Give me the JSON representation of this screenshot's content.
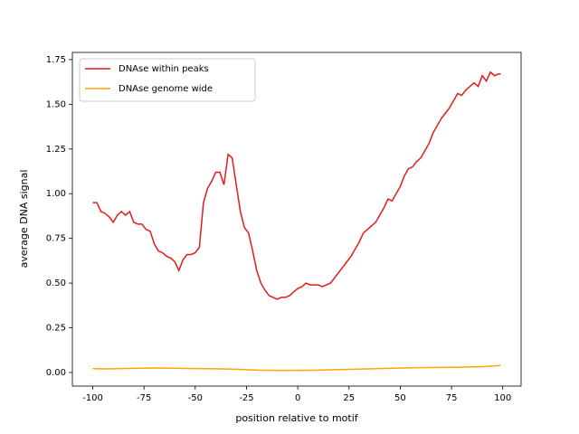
{
  "chart_data": {
    "type": "line",
    "xlabel": "position relative to motif",
    "ylabel": "average DNA signal",
    "xlim": [
      -109.95,
      108.95
    ],
    "ylim": [
      -0.076,
      1.79
    ],
    "xticks": [
      -100,
      -75,
      -50,
      -25,
      0,
      25,
      50,
      75,
      100
    ],
    "yticks": [
      {
        "value": 0,
        "label": "0.00"
      },
      {
        "value": 0.25,
        "label": "0.25"
      },
      {
        "value": 0.5,
        "label": "0.50"
      },
      {
        "value": 0.75,
        "label": "0.75"
      },
      {
        "value": 1,
        "label": "1.00"
      },
      {
        "value": 1.25,
        "label": "1.25"
      },
      {
        "value": 1.5,
        "label": "1.50"
      },
      {
        "value": 1.75,
        "label": "1.75"
      }
    ],
    "legend": "upper left",
    "series": [
      {
        "name": "DNAse within peaks",
        "color": "#e41a1c",
        "x": [
          -100,
          -98,
          -96,
          -94,
          -92,
          -90,
          -88,
          -86,
          -84,
          -82,
          -80,
          -78,
          -76,
          -74,
          -72,
          -70,
          -68,
          -66,
          -64,
          -62,
          -60,
          -58,
          -56,
          -54,
          -52,
          -50,
          -48,
          -46,
          -44,
          -42,
          -40,
          -38,
          -36,
          -34,
          -32,
          -30,
          -28,
          -26,
          -24,
          -22,
          -20,
          -18,
          -16,
          -14,
          -12,
          -10,
          -8,
          -6,
          -4,
          -2,
          0,
          2,
          4,
          6,
          8,
          10,
          12,
          14,
          16,
          18,
          20,
          22,
          24,
          26,
          28,
          30,
          32,
          34,
          36,
          38,
          40,
          42,
          44,
          46,
          48,
          50,
          52,
          54,
          56,
          58,
          60,
          62,
          64,
          66,
          68,
          70,
          72,
          74,
          76,
          78,
          80,
          82,
          84,
          86,
          88,
          90,
          92,
          94,
          96,
          98,
          99
        ],
        "values": [
          0.95,
          0.95,
          0.9,
          0.89,
          0.87,
          0.84,
          0.88,
          0.9,
          0.88,
          0.9,
          0.84,
          0.83,
          0.83,
          0.8,
          0.79,
          0.72,
          0.68,
          0.67,
          0.65,
          0.64,
          0.62,
          0.57,
          0.63,
          0.66,
          0.66,
          0.67,
          0.7,
          0.95,
          1.03,
          1.07,
          1.12,
          1.12,
          1.05,
          1.22,
          1.2,
          1.05,
          0.9,
          0.81,
          0.78,
          0.68,
          0.57,
          0.5,
          0.46,
          0.43,
          0.42,
          0.41,
          0.42,
          0.42,
          0.43,
          0.45,
          0.47,
          0.48,
          0.5,
          0.49,
          0.49,
          0.49,
          0.48,
          0.49,
          0.5,
          0.53,
          0.56,
          0.59,
          0.62,
          0.65,
          0.69,
          0.73,
          0.78,
          0.8,
          0.82,
          0.84,
          0.88,
          0.92,
          0.97,
          0.96,
          1.0,
          1.04,
          1.1,
          1.14,
          1.15,
          1.18,
          1.2,
          1.24,
          1.28,
          1.34,
          1.38,
          1.42,
          1.45,
          1.48,
          1.52,
          1.56,
          1.55,
          1.58,
          1.6,
          1.62,
          1.6,
          1.66,
          1.63,
          1.68,
          1.66,
          1.67,
          1.67
        ]
      },
      {
        "name": "DNAse genome wide",
        "color": "#ffa500",
        "x": [
          -100,
          -95,
          -90,
          -80,
          -70,
          -60,
          -50,
          -40,
          -30,
          -20,
          -10,
          0,
          10,
          20,
          30,
          40,
          50,
          60,
          70,
          80,
          90,
          95,
          99
        ],
        "values": [
          0.022,
          0.02,
          0.021,
          0.023,
          0.025,
          0.024,
          0.022,
          0.021,
          0.018,
          0.013,
          0.012,
          0.012,
          0.013,
          0.016,
          0.019,
          0.022,
          0.025,
          0.027,
          0.028,
          0.03,
          0.033,
          0.036,
          0.04
        ]
      }
    ]
  }
}
